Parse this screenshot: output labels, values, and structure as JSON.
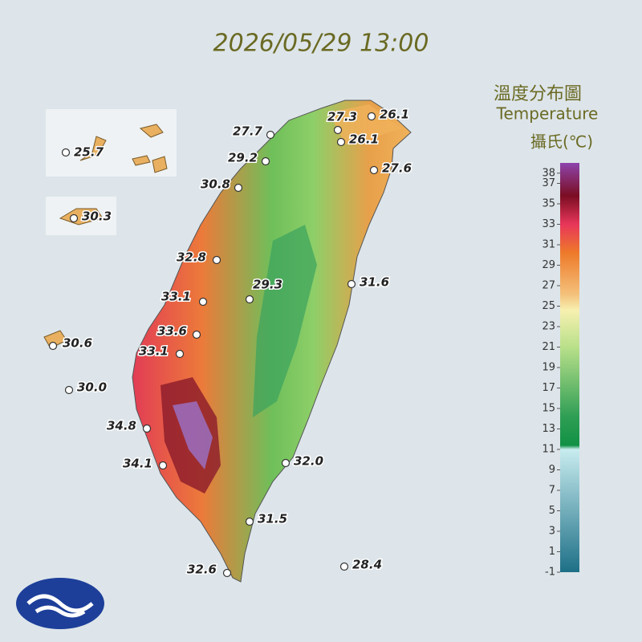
{
  "header": {
    "title": "2026/05/29 13:00"
  },
  "legend": {
    "title": "溫度分布圖",
    "subtitle": "Temperature",
    "unit": "攝氏(℃)",
    "ticks": [
      38,
      37,
      35,
      33,
      31,
      29,
      27,
      25,
      23,
      21,
      19,
      17,
      15,
      13,
      11,
      9,
      7,
      5,
      3,
      1,
      -1
    ]
  },
  "stations": [
    "25.7",
    "30.3",
    "27.7",
    "27.3",
    "26.1",
    "26.1",
    "29.2",
    "27.6",
    "30.8",
    "32.8",
    "31.6",
    "29.3",
    "33.1",
    "33.6",
    "30.6",
    "33.1",
    "30.0",
    "34.8",
    "34.1",
    "32.0",
    "31.5",
    "32.6",
    "28.4"
  ]
}
